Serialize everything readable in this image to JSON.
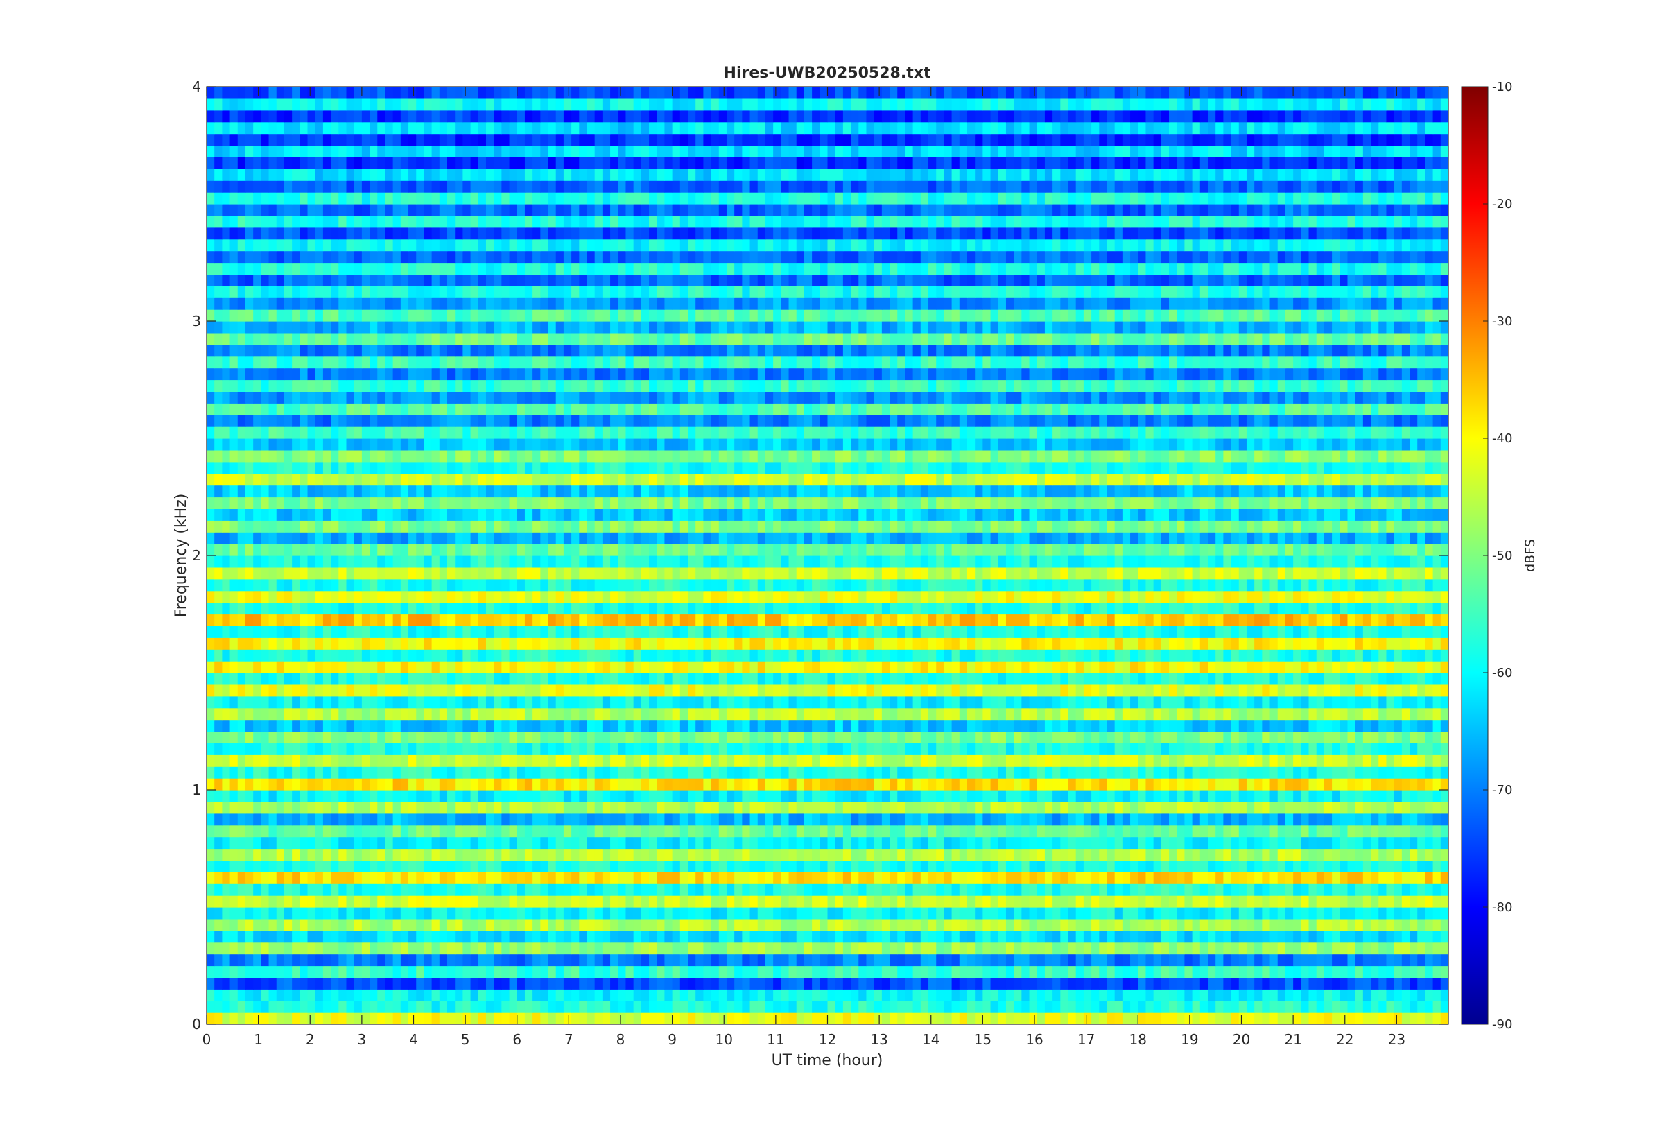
{
  "chart_data": {
    "type": "heatmap",
    "title": "Hires-UWB20250528.txt",
    "xlabel": "UT time (hour)",
    "ylabel": "Frequency (kHz)",
    "xlim": [
      0,
      24
    ],
    "ylim": [
      0,
      4
    ],
    "x_ticks": [
      "0",
      "1",
      "2",
      "3",
      "4",
      "5",
      "6",
      "7",
      "8",
      "9",
      "10",
      "11",
      "12",
      "13",
      "14",
      "15",
      "16",
      "17",
      "18",
      "19",
      "20",
      "21",
      "22",
      "23"
    ],
    "y_ticks": [
      "0",
      "1",
      "2",
      "3",
      "4"
    ],
    "colorbar": {
      "label": "dBFS",
      "limits": [
        -90,
        -10
      ],
      "ticks": [
        "-90",
        "-80",
        "-70",
        "-60",
        "-50",
        "-40",
        "-30",
        "-20",
        "-10"
      ],
      "colormap": "jet"
    },
    "band_spacing_khz": 0.1,
    "band_levels_dbfs": [
      {
        "f": 0.05,
        "level": -42
      },
      {
        "f": 0.15,
        "level": -60
      },
      {
        "f": 0.25,
        "level": -56
      },
      {
        "f": 0.35,
        "level": -48
      },
      {
        "f": 0.45,
        "level": -46
      },
      {
        "f": 0.55,
        "level": -44
      },
      {
        "f": 0.65,
        "level": -38
      },
      {
        "f": 0.75,
        "level": -46
      },
      {
        "f": 0.85,
        "level": -52
      },
      {
        "f": 0.95,
        "level": -46
      },
      {
        "f": 1.05,
        "level": -38
      },
      {
        "f": 1.15,
        "level": -44
      },
      {
        "f": 1.25,
        "level": -50
      },
      {
        "f": 1.35,
        "level": -46
      },
      {
        "f": 1.45,
        "level": -42
      },
      {
        "f": 1.55,
        "level": -40
      },
      {
        "f": 1.65,
        "level": -40
      },
      {
        "f": 1.75,
        "level": -36
      },
      {
        "f": 1.85,
        "level": -42
      },
      {
        "f": 1.95,
        "level": -44
      },
      {
        "f": 2.05,
        "level": -52
      },
      {
        "f": 2.15,
        "level": -50
      },
      {
        "f": 2.25,
        "level": -50
      },
      {
        "f": 2.35,
        "level": -44
      },
      {
        "f": 2.45,
        "level": -50
      },
      {
        "f": 2.55,
        "level": -56
      },
      {
        "f": 2.65,
        "level": -54
      },
      {
        "f": 2.75,
        "level": -56
      },
      {
        "f": 2.85,
        "level": -56
      },
      {
        "f": 2.95,
        "level": -52
      },
      {
        "f": 3.05,
        "level": -54
      },
      {
        "f": 3.15,
        "level": -58
      },
      {
        "f": 3.25,
        "level": -58
      },
      {
        "f": 3.35,
        "level": -60
      },
      {
        "f": 3.45,
        "level": -58
      },
      {
        "f": 3.55,
        "level": -58
      },
      {
        "f": 3.65,
        "level": -62
      },
      {
        "f": 3.75,
        "level": -62
      },
      {
        "f": 3.85,
        "level": -62
      },
      {
        "f": 3.95,
        "level": -60
      }
    ]
  }
}
